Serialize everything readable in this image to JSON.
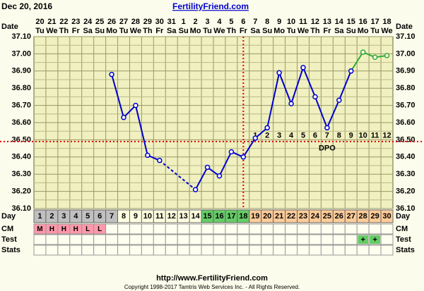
{
  "header": {
    "date": "Dec 20, 2016",
    "site": "FertilityFriend.com"
  },
  "footer": {
    "url": "http://www.FertilityFriend.com",
    "copyright": "Copyright 1998-2017 Tamtris Web Services Inc. - All Rights Reserved."
  },
  "chart_data": {
    "type": "line",
    "row_labels": {
      "date": "Date",
      "day": "Day",
      "cm": "CM",
      "test": "Test",
      "stats": "Stats"
    },
    "dates": [
      "20",
      "21",
      "22",
      "23",
      "24",
      "25",
      "26",
      "27",
      "28",
      "29",
      "30",
      "31",
      "1",
      "2",
      "3",
      "4",
      "5",
      "6",
      "7",
      "8",
      "9",
      "10",
      "11",
      "12",
      "13",
      "14",
      "15",
      "16",
      "17",
      "18"
    ],
    "weekdays": [
      "Tu",
      "We",
      "Th",
      "Fr",
      "Sa",
      "Su",
      "Mo",
      "Tu",
      "We",
      "Th",
      "Fr",
      "Sa",
      "Su",
      "Mo",
      "Tu",
      "We",
      "Th",
      "Fr",
      "Sa",
      "Su",
      "Mo",
      "Tu",
      "We",
      "Th",
      "Fr",
      "Sa",
      "Su",
      "Mo",
      "Tu",
      "We"
    ],
    "cycle_days": [
      1,
      2,
      3,
      4,
      5,
      6,
      7,
      8,
      9,
      10,
      11,
      12,
      13,
      14,
      15,
      16,
      17,
      18,
      19,
      20,
      21,
      22,
      23,
      24,
      25,
      26,
      27,
      28,
      29,
      30
    ],
    "cycle_day_colors": [
      "#c0c0c0",
      "#c0c0c0",
      "#c0c0c0",
      "#c0c0c0",
      "#c0c0c0",
      "#c0c0c0",
      "#c0c0c0",
      "#ffffe0",
      "#ffffe0",
      "#ffffe0",
      "#ffffe0",
      "#ffffe0",
      "#ffffe0",
      "#ffffe0",
      "#66cc66",
      "#66cc66",
      "#66cc66",
      "#66cc66",
      "#ffcc99",
      "#ffcc99",
      "#ffcc99",
      "#ffcc99",
      "#ffcc99",
      "#ffcc99",
      "#ffcc99",
      "#ffcc99",
      "#ffcc99",
      "#ffcc99",
      "#ffcc99",
      "#ffcc99"
    ],
    "values": [
      null,
      null,
      null,
      null,
      null,
      null,
      36.88,
      36.63,
      36.7,
      36.41,
      36.38,
      null,
      null,
      36.21,
      36.34,
      36.29,
      36.43,
      36.4,
      36.51,
      36.57,
      36.89,
      36.71,
      36.92,
      36.75,
      36.57,
      36.73,
      36.9,
      37.01,
      36.98,
      36.99
    ],
    "point_colors": [
      null,
      null,
      null,
      null,
      null,
      null,
      "#0000cc",
      "#0000cc",
      "#0000cc",
      "#0000cc",
      "#0000cc",
      null,
      null,
      "#0000cc",
      "#0000cc",
      "#0000cc",
      "#0000cc",
      "#0000cc",
      "#0000cc",
      "#0000cc",
      "#0000cc",
      "#0000cc",
      "#0000cc",
      "#0000cc",
      "#0000cc",
      "#0000cc",
      "#0000cc",
      "#33aa33",
      "#33aa33",
      "#33aa33"
    ],
    "ylim": [
      36.1,
      37.1
    ],
    "yticks": [
      {
        "value": 36.1,
        "label": "36.10"
      },
      {
        "value": 36.2,
        "label": "36.20"
      },
      {
        "value": 36.3,
        "label": "36.30"
      },
      {
        "value": 36.4,
        "label": "36.40"
      },
      {
        "value": 36.5,
        "label": "36.50"
      },
      {
        "value": 36.6,
        "label": "36.60"
      },
      {
        "value": 36.7,
        "label": "36.70"
      },
      {
        "value": 36.8,
        "label": "36.80"
      },
      {
        "value": 36.9,
        "label": "36.90"
      },
      {
        "value": 37.0,
        "label": "37.00"
      },
      {
        "value": 37.1,
        "label": "37.10"
      }
    ],
    "grid": true,
    "coverline": 36.49,
    "reference_color": "#dd0000",
    "ovulation_cycle_day": 18,
    "dpo": [
      1,
      2,
      3,
      4,
      5,
      6,
      7,
      8,
      9,
      10,
      11,
      12
    ],
    "dpo_label": "DPO",
    "cm": [
      "M",
      "H",
      "H",
      "H",
      "L",
      "L",
      null,
      null,
      null,
      null,
      null,
      null,
      null,
      null,
      null,
      null,
      null,
      null,
      null,
      null,
      null,
      null,
      null,
      null,
      null,
      null,
      null,
      null,
      null,
      null
    ],
    "cm_color": "#ff99aa",
    "test": [
      null,
      null,
      null,
      null,
      null,
      null,
      null,
      null,
      null,
      null,
      null,
      null,
      null,
      null,
      null,
      null,
      null,
      null,
      null,
      null,
      null,
      null,
      null,
      null,
      null,
      null,
      null,
      "+",
      "+",
      null
    ],
    "test_color": "#66cc66"
  }
}
